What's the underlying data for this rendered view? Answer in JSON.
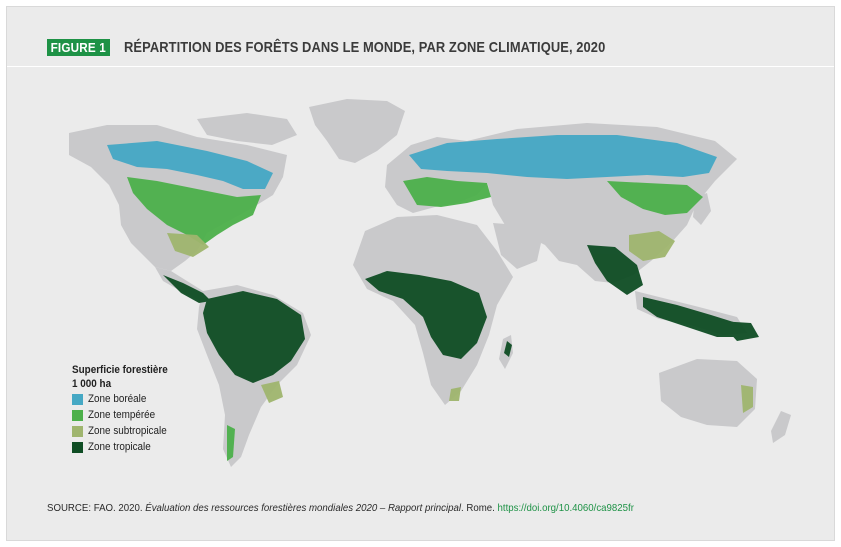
{
  "figure": {
    "badge": "FIGURE 1",
    "title": "RÉPARTITION DES FORÊTS DANS LE MONDE, PAR ZONE CLIMATIQUE, 2020"
  },
  "legend": {
    "title_line1": "Superficie forestière",
    "title_line2": "1 000 ha",
    "items": [
      {
        "label": "Zone boréale",
        "color": "#45a8c4"
      },
      {
        "label": "Zone tempérée",
        "color": "#4cb04a"
      },
      {
        "label": "Zone subtropicale",
        "color": "#9fb56e"
      },
      {
        "label": "Zone tropicale",
        "color": "#0f4d24"
      }
    ]
  },
  "colors": {
    "land": "#c9c9cb",
    "background": "#ebebeb",
    "badge": "#1e9246"
  },
  "source": {
    "prefix": "SOURCE: FAO. 2020. ",
    "italic_title": "Évaluation des ressources forestières mondiales 2020 – Rapport principal",
    "middle": ". Rome. ",
    "link": "https://doi.org/10.4060/ca9825fr"
  }
}
